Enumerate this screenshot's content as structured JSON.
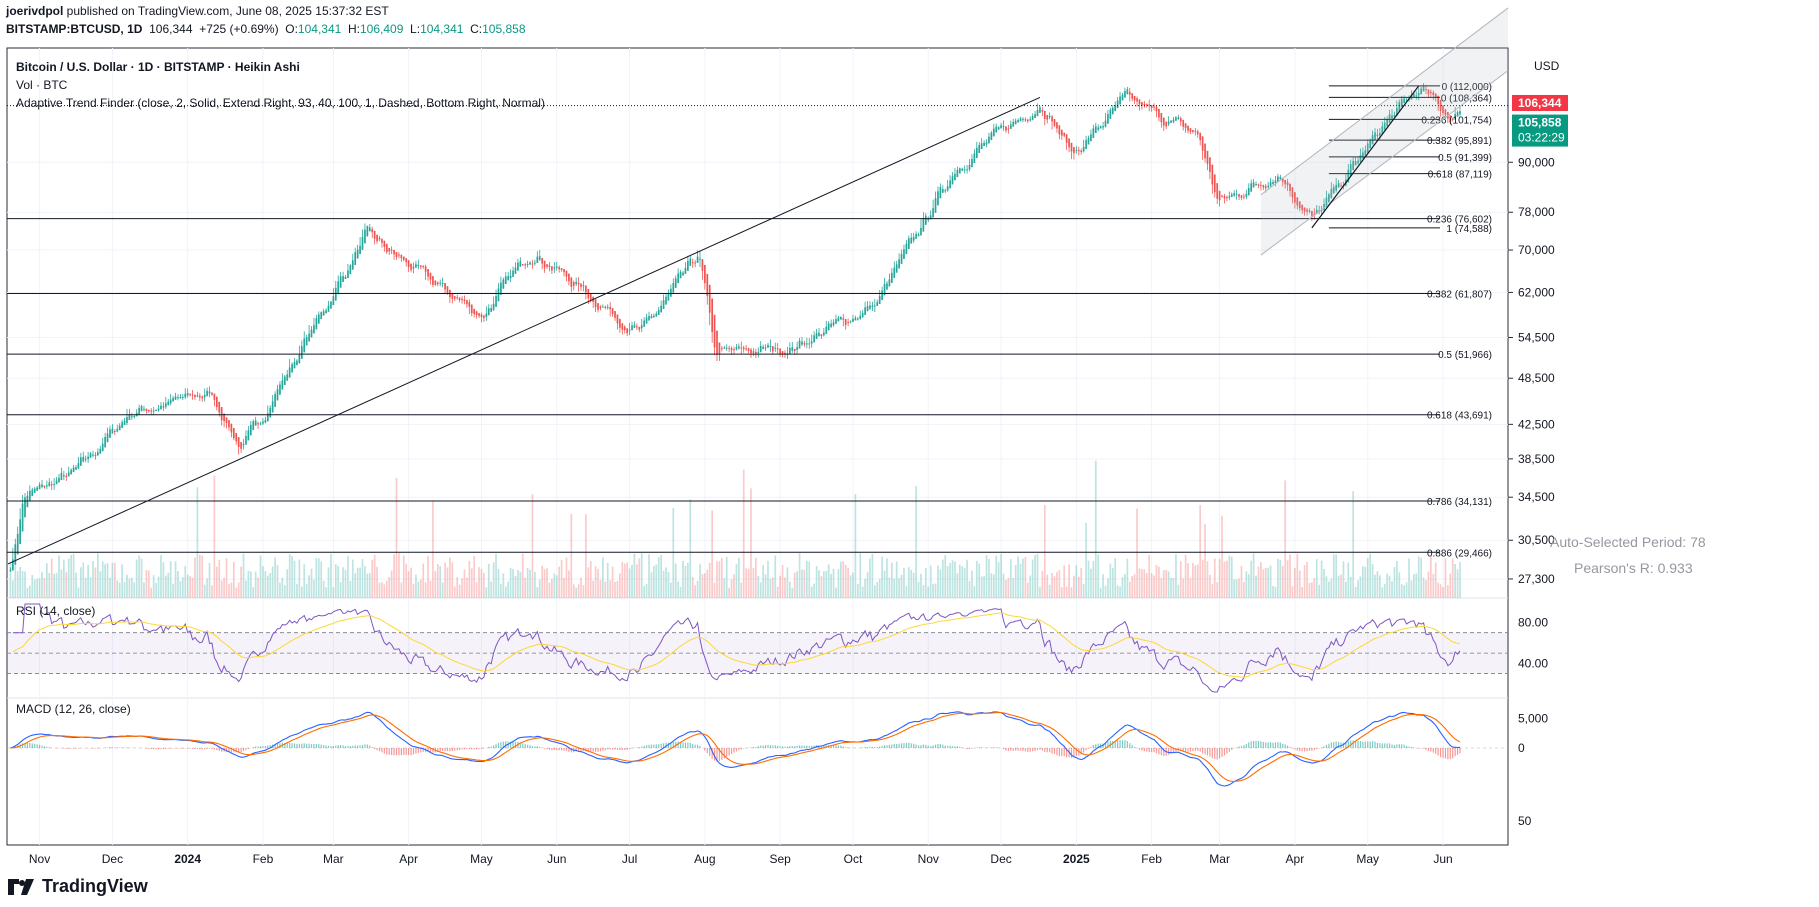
{
  "header": {
    "line1_user": "joerivdpol",
    "line1_rest": " published on TradingView.com, June 08, 2025 15:37:32 EST",
    "symbol": "BITSTAMP:BTCUSD, 1D",
    "price": "106,344",
    "change": "+725 (+0.69%)",
    "o_label": "O:",
    "o": "104,341",
    "h_label": "H:",
    "h": "106,409",
    "l_label": "L:",
    "l": "104,341",
    "c_label": "C:",
    "c": "105,858"
  },
  "legend": {
    "title": "Bitcoin / U.S. Dollar · 1D · BITSTAMP · Heikin Ashi",
    "volume": "Vol · BTC",
    "indicator": "Adaptive Trend Finder (close, 2, Solid, Extend Right, 93, 40, 100, 1, Dashed, Bottom Right, Normal)",
    "rsi": "RSI (14, close)",
    "macd": "MACD (12, 26, close)",
    "auto_period": "Auto-Selected Period: 78",
    "pearson": "Pearson's R: 0.933"
  },
  "branding": {
    "logo_text": "TradingView"
  },
  "colors": {
    "up": "#26a69a",
    "down": "#ef5350",
    "rsi_line": "#7e57c2",
    "rsi_ma": "#fdd835",
    "macd_line": "#2962ff",
    "signal_line": "#ff6d00",
    "grid": "#f0f3fa",
    "accent_red": "#f23645",
    "accent_green": "#089981"
  },
  "chart_data": {
    "type": "candlestick",
    "title": "Bitcoin / U.S. Dollar · 1D · BITSTAMP · Heikin Ashi",
    "currency": "USD",
    "scale": "log",
    "ylim": [
      26000,
      122000
    ],
    "y_ticks": [
      "27,300",
      "30,500",
      "34,500",
      "38,500",
      "42,500",
      "48,500",
      "54,500",
      "62,000",
      "70,000",
      "78,000",
      "90,000"
    ],
    "x_ticks": [
      "Nov",
      "Dec",
      "2024",
      "Feb",
      "Mar",
      "Apr",
      "May",
      "Jun",
      "Jul",
      "Aug",
      "Sep",
      "Oct",
      "Nov",
      "Dec",
      "2025",
      "Feb",
      "Mar",
      "Apr",
      "May",
      "Jun"
    ],
    "price_labels": {
      "last": "106,344",
      "close": "105,858",
      "countdown": "03:22:29"
    },
    "key_points": [
      {
        "date": "2023-10-20",
        "price": 28500
      },
      {
        "date": "2023-10-25",
        "price": 34500
      },
      {
        "date": "2023-11-15",
        "price": 37000
      },
      {
        "date": "2023-12-08",
        "price": 44000
      },
      {
        "date": "2024-01-10",
        "price": 46500
      },
      {
        "date": "2024-01-23",
        "price": 39500
      },
      {
        "date": "2024-02-15",
        "price": 52000
      },
      {
        "date": "2024-03-14",
        "price": 73000
      },
      {
        "date": "2024-04-13",
        "price": 63000
      },
      {
        "date": "2024-05-01",
        "price": 58000
      },
      {
        "date": "2024-05-21",
        "price": 70000
      },
      {
        "date": "2024-07-05",
        "price": 55000
      },
      {
        "date": "2024-07-29",
        "price": 69000
      },
      {
        "date": "2024-08-05",
        "price": 52000
      },
      {
        "date": "2024-09-06",
        "price": 53000
      },
      {
        "date": "2024-10-10",
        "price": 60000
      },
      {
        "date": "2024-11-12",
        "price": 89000
      },
      {
        "date": "2024-12-17",
        "price": 107000
      },
      {
        "date": "2024-12-30",
        "price": 92000
      },
      {
        "date": "2025-01-21",
        "price": 108000
      },
      {
        "date": "2025-02-20",
        "price": 97000
      },
      {
        "date": "2025-02-28",
        "price": 80000
      },
      {
        "date": "2025-03-25",
        "price": 87500
      },
      {
        "date": "2025-04-08",
        "price": 76000
      },
      {
        "date": "2025-05-08",
        "price": 101000
      },
      {
        "date": "2025-05-22",
        "price": 111000
      },
      {
        "date": "2025-06-05",
        "price": 101500
      },
      {
        "date": "2025-06-08",
        "price": 105858
      }
    ],
    "fib_large": [
      {
        "label": "0.236 (76,602)",
        "price": 76602
      },
      {
        "label": "0.382 (61,807)",
        "price": 61807
      },
      {
        "label": "0.5 (51,966)",
        "price": 51966
      },
      {
        "label": "0.618 (43,691)",
        "price": 43691
      },
      {
        "label": "0.786 (34,131)",
        "price": 34131
      },
      {
        "label": "0.886 (29,466)",
        "price": 29466
      }
    ],
    "fib_small": [
      {
        "label": "0 (112,000)",
        "price": 112000
      },
      {
        "label": "0 (108,364)",
        "price": 108364
      },
      {
        "label": "0.236 (101,754)",
        "price": 101754
      },
      {
        "label": "0.382 (95,891)",
        "price": 95891
      },
      {
        "label": "0.5 (91,399)",
        "price": 91399
      },
      {
        "label": "0.618 (87,119)",
        "price": 87119
      },
      {
        "label": "1 (74,588)",
        "price": 74588
      }
    ],
    "rsi": {
      "ticks": [
        "80.00",
        "40.00"
      ],
      "upper": 70,
      "lower": 30,
      "ylim": [
        10,
        100
      ]
    },
    "macd": {
      "ticks": [
        "5,000",
        "0",
        "50"
      ]
    }
  }
}
